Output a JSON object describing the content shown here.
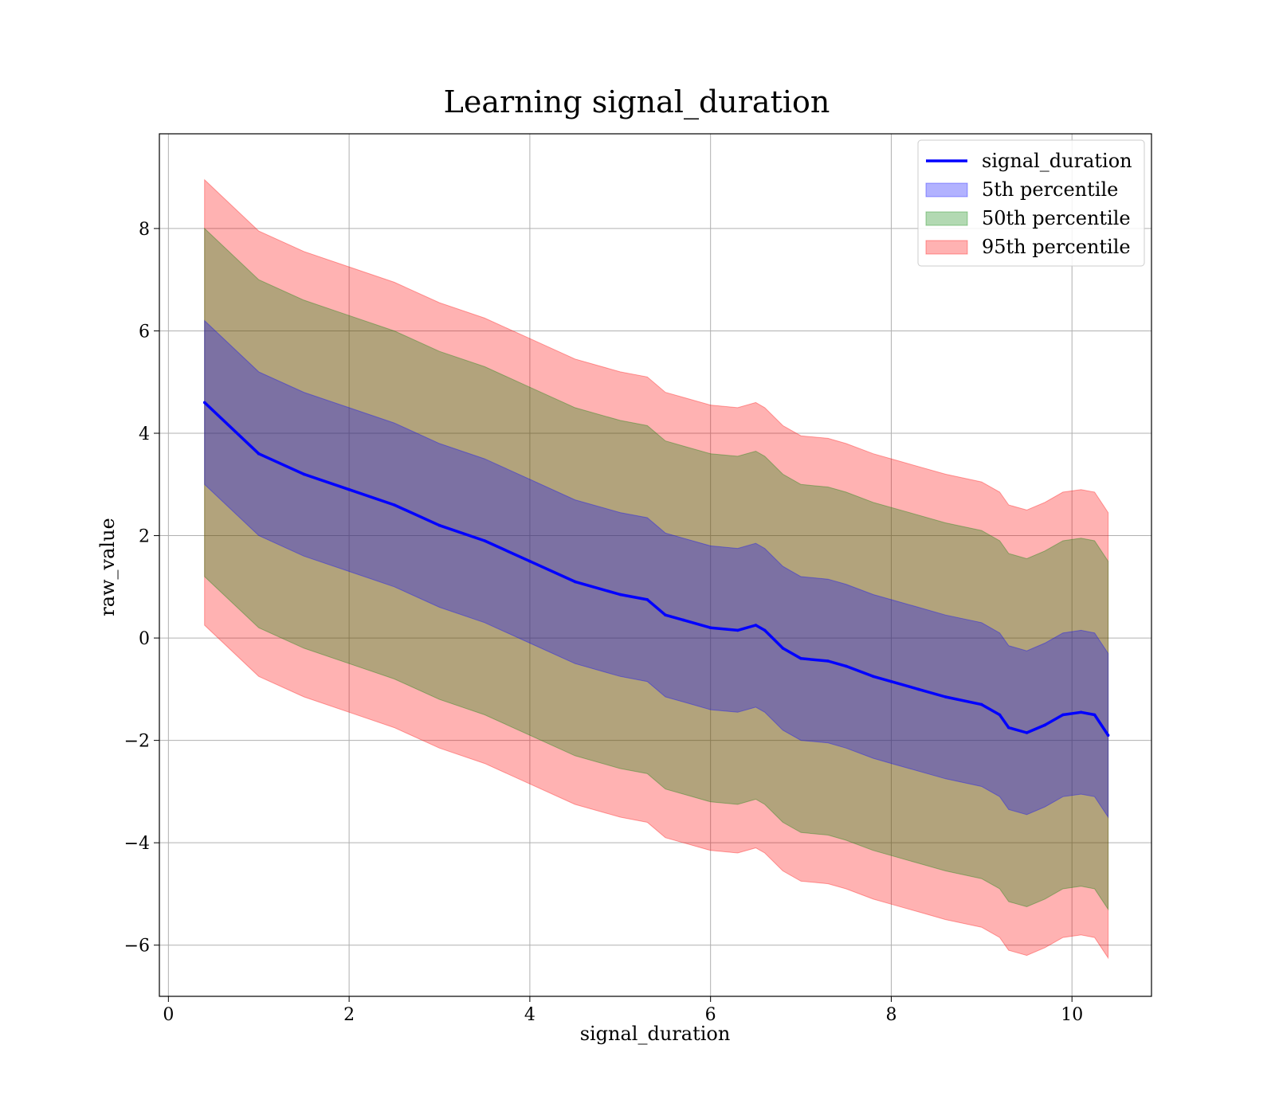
{
  "chart_data": {
    "type": "area",
    "title": "Learning signal_duration",
    "xlabel": "signal_duration",
    "ylabel": "raw_value",
    "xlim": [
      -0.1,
      10.88
    ],
    "ylim": [
      -7.0,
      9.85
    ],
    "xticks": [
      0,
      2,
      4,
      6,
      8,
      10
    ],
    "xtick_labels": [
      "0",
      "2",
      "4",
      "6",
      "8",
      "10"
    ],
    "yticks": [
      -6,
      -4,
      -2,
      0,
      2,
      4,
      6,
      8
    ],
    "ytick_labels": [
      "−6",
      "−4",
      "−2",
      "0",
      "2",
      "4",
      "6",
      "8"
    ],
    "grid": true,
    "legend_position": "top-right",
    "x": [
      0.4,
      1.0,
      1.5,
      2.0,
      2.5,
      3.0,
      3.5,
      4.0,
      4.5,
      5.0,
      5.3,
      5.5,
      5.7,
      6.0,
      6.3,
      6.5,
      6.6,
      6.8,
      7.0,
      7.3,
      7.5,
      7.8,
      8.0,
      8.3,
      8.6,
      9.0,
      9.2,
      9.3,
      9.5,
      9.7,
      9.9,
      10.1,
      10.25,
      10.4
    ],
    "series": [
      {
        "name": "signal_duration",
        "kind": "line",
        "color": "#0000ff",
        "values": [
          4.6,
          3.6,
          3.2,
          2.9,
          2.6,
          2.2,
          1.9,
          1.5,
          1.1,
          0.85,
          0.75,
          0.45,
          0.35,
          0.2,
          0.15,
          0.25,
          0.15,
          -0.2,
          -0.4,
          -0.45,
          -0.55,
          -0.75,
          -0.85,
          -1.0,
          -1.15,
          -1.3,
          -1.5,
          -1.75,
          -1.85,
          -1.7,
          -1.5,
          -1.45,
          -1.5,
          -1.9
        ]
      },
      {
        "name": "5th percentile",
        "kind": "band",
        "color": "#0000ff",
        "half_width": 1.6
      },
      {
        "name": "50th percentile",
        "kind": "band",
        "color": "#008000",
        "half_width": 3.4
      },
      {
        "name": "95th percentile",
        "kind": "band",
        "color": "#ff0000",
        "half_width": 4.35
      }
    ]
  }
}
